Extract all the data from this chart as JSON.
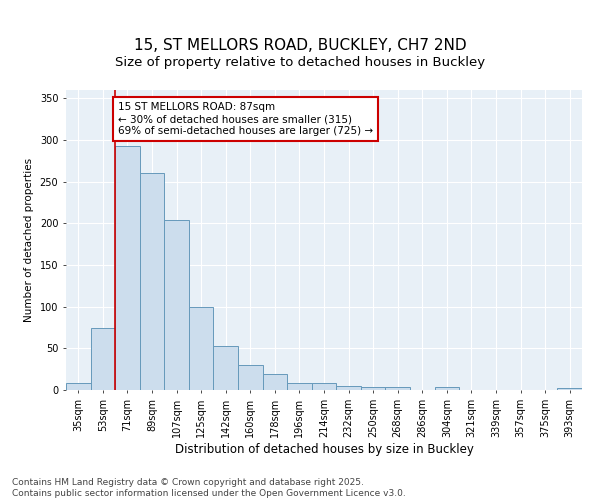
{
  "title": "15, ST MELLORS ROAD, BUCKLEY, CH7 2ND",
  "subtitle": "Size of property relative to detached houses in Buckley",
  "xlabel": "Distribution of detached houses by size in Buckley",
  "ylabel": "Number of detached properties",
  "categories": [
    "35sqm",
    "53sqm",
    "71sqm",
    "89sqm",
    "107sqm",
    "125sqm",
    "142sqm",
    "160sqm",
    "178sqm",
    "196sqm",
    "214sqm",
    "232sqm",
    "250sqm",
    "268sqm",
    "286sqm",
    "304sqm",
    "321sqm",
    "339sqm",
    "357sqm",
    "375sqm",
    "393sqm"
  ],
  "values": [
    8,
    74,
    293,
    260,
    204,
    100,
    53,
    30,
    19,
    8,
    8,
    5,
    4,
    4,
    0,
    4,
    0,
    0,
    0,
    0,
    2
  ],
  "bar_color": "#ccdded",
  "bar_edge_color": "#6699bb",
  "line_color": "#cc0000",
  "annotation_text": "15 ST MELLORS ROAD: 87sqm\n← 30% of detached houses are smaller (315)\n69% of semi-detached houses are larger (725) →",
  "annotation_box_color": "white",
  "annotation_box_edge_color": "#cc0000",
  "ylim": [
    0,
    360
  ],
  "yticks": [
    0,
    50,
    100,
    150,
    200,
    250,
    300,
    350
  ],
  "background_color": "#dde8f0",
  "plot_bg_color": "#e8f0f7",
  "footer": "Contains HM Land Registry data © Crown copyright and database right 2025.\nContains public sector information licensed under the Open Government Licence v3.0.",
  "title_fontsize": 11,
  "subtitle_fontsize": 9.5,
  "xlabel_fontsize": 8.5,
  "ylabel_fontsize": 7.5,
  "tick_fontsize": 7,
  "annotation_fontsize": 7.5,
  "footer_fontsize": 6.5
}
